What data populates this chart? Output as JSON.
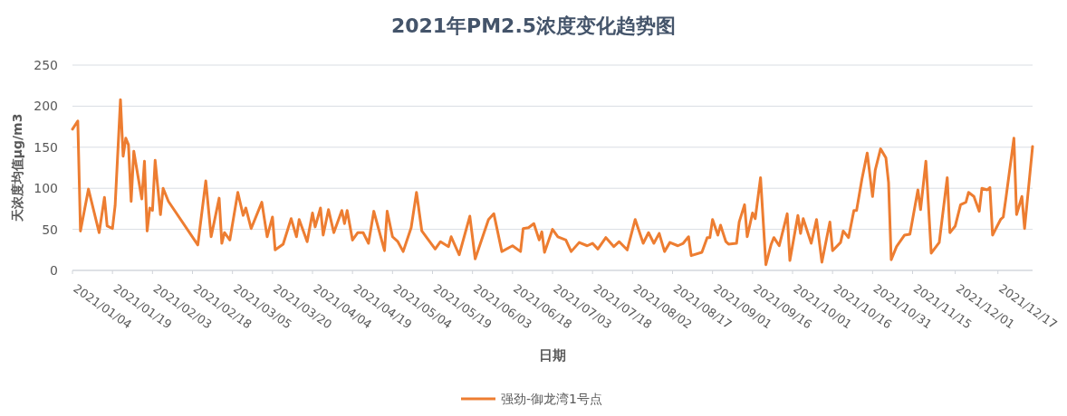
{
  "chart_data": {
    "type": "line",
    "title": "2021年PM2.5浓度变化趋势图",
    "xlabel": "日期",
    "ylabel": "天浓度均值μg/m3",
    "x": [
      "2021-01-04",
      "2021-01-06",
      "2021-01-07",
      "2021-01-10",
      "2021-01-14",
      "2021-01-16",
      "2021-01-17",
      "2021-01-19",
      "2021-01-20",
      "2021-01-22",
      "2021-01-23",
      "2021-01-24",
      "2021-01-25",
      "2021-01-26",
      "2021-01-27",
      "2021-01-30",
      "2021-01-31",
      "2021-02-01",
      "2021-02-02",
      "2021-02-03",
      "2021-02-04",
      "2021-02-06",
      "2021-02-07",
      "2021-02-09",
      "2021-02-20",
      "2021-02-23",
      "2021-02-25",
      "2021-02-28",
      "2021-03-01",
      "2021-03-02",
      "2021-03-04",
      "2021-03-07",
      "2021-03-09",
      "2021-03-10",
      "2021-03-12",
      "2021-03-16",
      "2021-03-18",
      "2021-03-20",
      "2021-03-21",
      "2021-03-24",
      "2021-03-27",
      "2021-03-29",
      "2021-03-30",
      "2021-04-02",
      "2021-04-04",
      "2021-04-05",
      "2021-04-07",
      "2021-04-08",
      "2021-04-10",
      "2021-04-12",
      "2021-04-15",
      "2021-04-16",
      "2021-04-17",
      "2021-04-19",
      "2021-04-21",
      "2021-04-23",
      "2021-04-25",
      "2021-04-27",
      "2021-05-01",
      "2021-05-02",
      "2021-05-04",
      "2021-05-06",
      "2021-05-08",
      "2021-05-11",
      "2021-05-13",
      "2021-05-15",
      "2021-05-20",
      "2021-05-22",
      "2021-05-25",
      "2021-05-26",
      "2021-05-29",
      "2021-06-02",
      "2021-06-04",
      "2021-06-09",
      "2021-06-11",
      "2021-06-14",
      "2021-06-18",
      "2021-06-21",
      "2021-06-22",
      "2021-06-24",
      "2021-06-26",
      "2021-06-28",
      "2021-06-29",
      "2021-06-30",
      "2021-07-03",
      "2021-07-05",
      "2021-07-08",
      "2021-07-10",
      "2021-07-13",
      "2021-07-16",
      "2021-07-18",
      "2021-07-20",
      "2021-07-23",
      "2021-07-26",
      "2021-07-28",
      "2021-07-31",
      "2021-08-03",
      "2021-08-06",
      "2021-08-08",
      "2021-08-10",
      "2021-08-12",
      "2021-08-14",
      "2021-08-16",
      "2021-08-19",
      "2021-08-21",
      "2021-08-23",
      "2021-08-24",
      "2021-08-28",
      "2021-08-30",
      "2021-08-31",
      "2021-09-01",
      "2021-09-03",
      "2021-09-04",
      "2021-09-06",
      "2021-09-07",
      "2021-09-10",
      "2021-09-11",
      "2021-09-13",
      "2021-09-14",
      "2021-09-16",
      "2021-09-17",
      "2021-09-19",
      "2021-09-21",
      "2021-09-23",
      "2021-09-24",
      "2021-09-26",
      "2021-09-29",
      "2021-09-30",
      "2021-10-03",
      "2021-10-04",
      "2021-10-05",
      "2021-10-08",
      "2021-10-10",
      "2021-10-12",
      "2021-10-15",
      "2021-10-16",
      "2021-10-19",
      "2021-10-20",
      "2021-10-22",
      "2021-10-24",
      "2021-10-25",
      "2021-10-27",
      "2021-10-29",
      "2021-10-31",
      "2021-11-01",
      "2021-11-03",
      "2021-11-05",
      "2021-11-06",
      "2021-11-07",
      "2021-11-09",
      "2021-11-12",
      "2021-11-14",
      "2021-11-17",
      "2021-11-18",
      "2021-11-20",
      "2021-11-22",
      "2021-11-25",
      "2021-11-28",
      "2021-11-29",
      "2021-12-01",
      "2021-12-03",
      "2021-12-05",
      "2021-12-06",
      "2021-12-08",
      "2021-12-10",
      "2021-12-11",
      "2021-12-13",
      "2021-12-14",
      "2021-12-15",
      "2021-12-18",
      "2021-12-19",
      "2021-12-20",
      "2021-12-23",
      "2021-12-24",
      "2021-12-26",
      "2021-12-27",
      "2021-12-30"
    ],
    "series": [
      {
        "name": "强劲-御龙湾1号点",
        "color": "#ed7d31",
        "values": [
          172,
          182,
          48,
          99,
          46,
          89,
          54,
          51,
          79,
          208,
          139,
          161,
          153,
          84,
          145,
          87,
          133,
          48,
          76,
          73,
          134,
          68,
          100,
          84,
          31,
          109,
          41,
          88,
          33,
          46,
          37,
          95,
          67,
          76,
          51,
          83,
          41,
          65,
          25,
          32,
          63,
          41,
          62,
          35,
          70,
          53,
          76,
          43,
          74,
          46,
          73,
          57,
          73,
          37,
          46,
          46,
          33,
          72,
          24,
          72,
          41,
          35,
          23,
          52,
          95,
          48,
          26,
          35,
          29,
          41,
          19,
          66,
          14,
          62,
          69,
          23,
          30,
          23,
          51,
          52,
          57,
          37,
          47,
          22,
          50,
          41,
          37,
          23,
          34,
          30,
          33,
          26,
          40,
          29,
          35,
          25,
          62,
          33,
          46,
          33,
          45,
          23,
          34,
          30,
          33,
          41,
          18,
          22,
          40,
          40,
          62,
          43,
          55,
          35,
          32,
          33,
          59,
          80,
          41,
          70,
          63,
          113,
          7,
          32,
          40,
          30,
          69,
          12,
          67,
          45,
          63,
          33,
          62,
          10,
          59,
          24,
          34,
          48,
          40,
          73,
          73,
          111,
          143,
          90,
          122,
          148,
          137,
          107,
          13,
          29,
          43,
          44,
          98,
          74,
          133,
          21,
          34,
          113,
          46,
          54,
          80,
          83,
          95,
          90,
          72,
          100,
          98,
          101,
          43,
          62,
          65,
          88,
          161,
          68,
          90,
          51,
          151
        ]
      }
    ],
    "xlim": [
      "2021-01-04",
      "2021-12-30"
    ],
    "xticks": [
      {
        "value": "2021-01-04",
        "label": "2021/01/04"
      },
      {
        "value": "2021-01-19",
        "label": "2021/01/19"
      },
      {
        "value": "2021-02-03",
        "label": "2021/02/03"
      },
      {
        "value": "2021-02-18",
        "label": "2021/02/18"
      },
      {
        "value": "2021-03-05",
        "label": "2021/03/05"
      },
      {
        "value": "2021-03-20",
        "label": "2021/03/20"
      },
      {
        "value": "2021-04-04",
        "label": "2021/04/04"
      },
      {
        "value": "2021-04-19",
        "label": "2021/04/19"
      },
      {
        "value": "2021-05-04",
        "label": "2021/05/04"
      },
      {
        "value": "2021-05-19",
        "label": "2021/05/19"
      },
      {
        "value": "2021-06-03",
        "label": "2021/06/03"
      },
      {
        "value": "2021-06-18",
        "label": "2021/06/18"
      },
      {
        "value": "2021-07-03",
        "label": "2021/07/03"
      },
      {
        "value": "2021-07-18",
        "label": "2021/07/18"
      },
      {
        "value": "2021-08-02",
        "label": "2021/08/02"
      },
      {
        "value": "2021-08-17",
        "label": "2021/08/17"
      },
      {
        "value": "2021-09-01",
        "label": "2021/09/01"
      },
      {
        "value": "2021-09-16",
        "label": "2021/09/16"
      },
      {
        "value": "2021-10-01",
        "label": "2021/10/01"
      },
      {
        "value": "2021-10-16",
        "label": "2021/10/16"
      },
      {
        "value": "2021-10-31",
        "label": "2021/10/31"
      },
      {
        "value": "2021-11-15",
        "label": "2021/11/15"
      },
      {
        "value": "2021-12-01",
        "label": "2021/12/01"
      },
      {
        "value": "2021-12-17",
        "label": "2021/12/17"
      }
    ],
    "ylim": [
      0,
      250
    ],
    "yticks": [
      0,
      50,
      100,
      150,
      200,
      250
    ],
    "grid": "y",
    "legend": "bottom"
  }
}
